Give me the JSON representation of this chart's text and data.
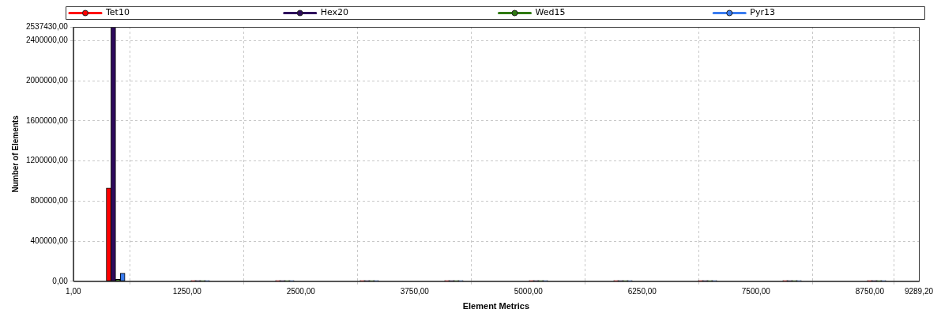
{
  "chart_data": {
    "type": "histogram",
    "xlabel": "Element Metrics",
    "ylabel": "Number of Elements",
    "bins": [
      1,
      929.82,
      1858.64,
      2787.46,
      3716.28,
      4645.1,
      5573.92,
      6502.74,
      7431.56,
      8360.38,
      9289.2
    ],
    "series": [
      {
        "name": "Tet10",
        "color": "#ff0000",
        "values": [
          930000,
          0,
          0,
          0,
          0,
          0,
          0,
          0,
          0,
          0
        ]
      },
      {
        "name": "Hex20",
        "color": "#2e0a5c",
        "values": [
          2537430,
          0,
          0,
          0,
          0,
          0,
          0,
          0,
          0,
          0
        ]
      },
      {
        "name": "Wed15",
        "color": "#2f7a12",
        "values": [
          20000,
          0,
          0,
          0,
          0,
          0,
          0,
          0,
          0,
          0
        ]
      },
      {
        "name": "Pyr13",
        "color": "#3a7cf0",
        "values": [
          80000,
          0,
          0,
          0,
          0,
          0,
          0,
          0,
          0,
          0
        ]
      }
    ],
    "xlim": [
      1,
      9289.2
    ],
    "xticks": [
      {
        "value": 1,
        "label": "1,00"
      },
      {
        "value": 1250,
        "label": "1250,00"
      },
      {
        "value": 2500,
        "label": "2500,00"
      },
      {
        "value": 3750,
        "label": "3750,00"
      },
      {
        "value": 5000,
        "label": "5000,00"
      },
      {
        "value": 6250,
        "label": "6250,00"
      },
      {
        "value": 7500,
        "label": "7500,00"
      },
      {
        "value": 8750,
        "label": "8750,00"
      },
      {
        "value": 9289.2,
        "label": "9289,20"
      }
    ],
    "ylim": [
      0,
      2537430
    ],
    "yticks": [
      {
        "value": 0,
        "label": "0,00"
      },
      {
        "value": 400000,
        "label": "400000,00"
      },
      {
        "value": 800000,
        "label": "800000,00"
      },
      {
        "value": 1200000,
        "label": "1200000,00"
      },
      {
        "value": 1600000,
        "label": "1600000,00"
      },
      {
        "value": 2000000,
        "label": "2000000,00"
      },
      {
        "value": 2400000,
        "label": "2400000,00"
      },
      {
        "value": 2537430,
        "label": "2537430,00"
      }
    ],
    "grid": true,
    "legend": "top",
    "marker": "circle"
  }
}
